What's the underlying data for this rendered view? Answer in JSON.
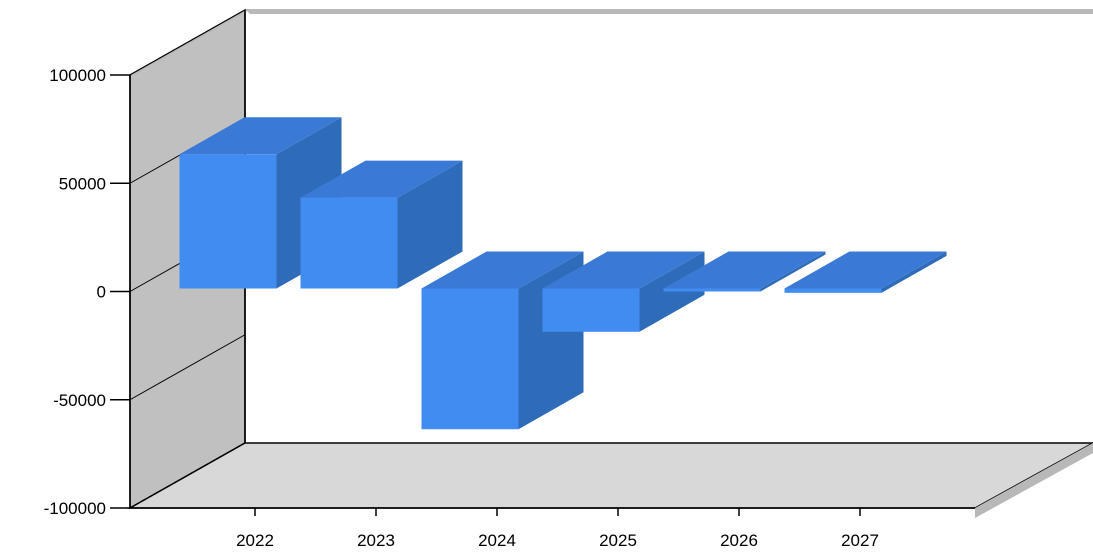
{
  "chart_data": {
    "type": "bar",
    "three_d": true,
    "categories": [
      "2022",
      "2023",
      "2024",
      "2025",
      "2026",
      "2027"
    ],
    "series": [
      {
        "values": [
          62000,
          42000,
          -65000,
          -20000,
          0,
          -2000
        ]
      }
    ],
    "title": "",
    "xlabel": "",
    "ylabel": "",
    "ylim": [
      -100000,
      100000
    ],
    "yticks": [
      100000,
      50000,
      0,
      -50000,
      -100000
    ],
    "grid": false,
    "legend": "none",
    "colors": {
      "bar_front": "#418cf0",
      "bar_side": "#2e6bb8",
      "bar_top": "#3a7ad6",
      "wall_left": "#c0c0c0",
      "floor": "#d8d8d8",
      "shadow": "#b8b8b8",
      "axis": "#000000"
    }
  }
}
